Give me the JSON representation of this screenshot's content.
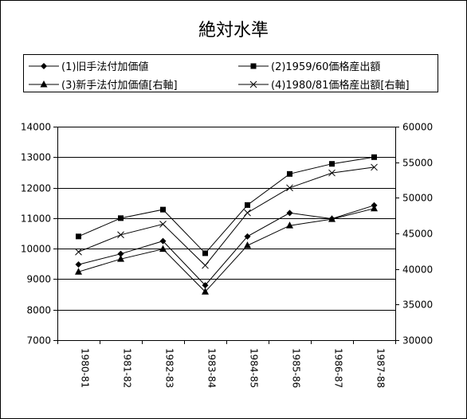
{
  "chart_data": {
    "type": "line",
    "title": "絶対水準",
    "categories": [
      "1980-81",
      "1981-82",
      "1982-83",
      "1983-84",
      "1984-85",
      "1985-86",
      "1986-87",
      "1987-88"
    ],
    "y_left": {
      "min": 7000,
      "max": 14000,
      "step": 1000,
      "ticks": [
        "7000",
        "8000",
        "9000",
        "10000",
        "11000",
        "12000",
        "13000",
        "14000"
      ]
    },
    "y_right": {
      "min": 30000,
      "max": 60000,
      "step": 5000,
      "ticks": [
        "30000",
        "35000",
        "40000",
        "45000",
        "50000",
        "55000",
        "60000"
      ]
    },
    "grid": "horizontal",
    "legend_position": "top",
    "series": [
      {
        "name": "(1)旧手法付加価値",
        "axis": "left",
        "marker": "diamond",
        "values": [
          9480,
          9830,
          10250,
          8800,
          10400,
          11170,
          10980,
          11420
        ]
      },
      {
        "name": "(2)1959/60価格産出額",
        "axis": "left",
        "marker": "square",
        "values": [
          10400,
          11000,
          11280,
          9850,
          11430,
          12450,
          12780,
          13000
        ]
      },
      {
        "name": "(3)新手法付加価値[右軸]",
        "axis": "right",
        "marker": "triangle",
        "values": [
          39600,
          41400,
          42800,
          36800,
          43300,
          46100,
          47000,
          48500
        ]
      },
      {
        "name": "(4)1980/81価格産出額[右軸]",
        "axis": "right",
        "marker": "x",
        "values": [
          42400,
          44800,
          46300,
          40500,
          47900,
          51400,
          53500,
          54300
        ]
      }
    ]
  }
}
